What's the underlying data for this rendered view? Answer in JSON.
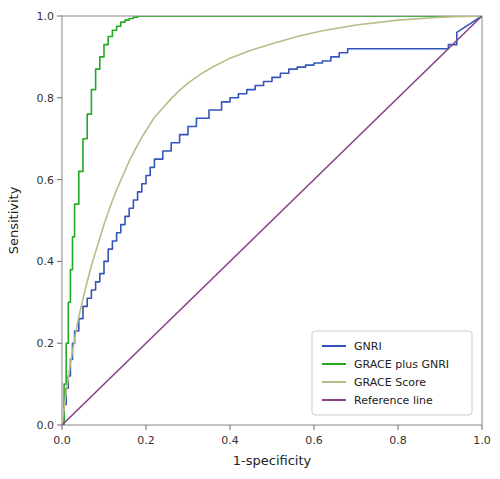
{
  "chart_data": {
    "type": "line",
    "xlabel": "1-specificity",
    "ylabel": "Sensitivity",
    "xlim": [
      0.0,
      1.0
    ],
    "ylim": [
      0.0,
      1.0
    ],
    "xticks": [
      {
        "value": 0.0,
        "label": "0.0"
      },
      0.2,
      0.4,
      0.6,
      0.8,
      {
        "value": 1.0,
        "label": "1.0"
      }
    ],
    "yticks": [
      {
        "value": 0.0,
        "label": "0.0"
      },
      0.2,
      0.4,
      0.6,
      0.8,
      {
        "value": 1.0,
        "label": "1.0"
      }
    ],
    "grid": false,
    "legend": "lower-right",
    "series": [
      {
        "name": "GNRI",
        "color": "#3355bb",
        "x": [
          0.0,
          0.005,
          0.005,
          0.01,
          0.01,
          0.015,
          0.015,
          0.02,
          0.02,
          0.025,
          0.025,
          0.03,
          0.03,
          0.04,
          0.04,
          0.05,
          0.05,
          0.06,
          0.06,
          0.07,
          0.07,
          0.08,
          0.08,
          0.09,
          0.09,
          0.1,
          0.1,
          0.11,
          0.11,
          0.12,
          0.12,
          0.13,
          0.13,
          0.14,
          0.14,
          0.15,
          0.15,
          0.16,
          0.16,
          0.17,
          0.17,
          0.18,
          0.18,
          0.19,
          0.19,
          0.2,
          0.2,
          0.21,
          0.21,
          0.22,
          0.22,
          0.24,
          0.24,
          0.26,
          0.26,
          0.28,
          0.28,
          0.3,
          0.3,
          0.32,
          0.32,
          0.35,
          0.35,
          0.38,
          0.38,
          0.4,
          0.4,
          0.42,
          0.42,
          0.44,
          0.44,
          0.46,
          0.46,
          0.48,
          0.48,
          0.5,
          0.5,
          0.52,
          0.52,
          0.54,
          0.54,
          0.56,
          0.56,
          0.58,
          0.58,
          0.6,
          0.6,
          0.62,
          0.62,
          0.64,
          0.64,
          0.66,
          0.66,
          0.68,
          0.68,
          0.92,
          0.92,
          0.94,
          0.94,
          1.0
        ],
        "values": [
          0.0,
          0.0,
          0.05,
          0.05,
          0.09,
          0.09,
          0.12,
          0.12,
          0.16,
          0.16,
          0.2,
          0.2,
          0.23,
          0.23,
          0.26,
          0.26,
          0.29,
          0.29,
          0.31,
          0.31,
          0.33,
          0.33,
          0.35,
          0.35,
          0.37,
          0.37,
          0.4,
          0.4,
          0.43,
          0.43,
          0.45,
          0.45,
          0.47,
          0.47,
          0.49,
          0.49,
          0.51,
          0.51,
          0.53,
          0.53,
          0.55,
          0.55,
          0.57,
          0.57,
          0.59,
          0.59,
          0.61,
          0.61,
          0.63,
          0.63,
          0.65,
          0.65,
          0.67,
          0.67,
          0.69,
          0.69,
          0.71,
          0.71,
          0.73,
          0.73,
          0.75,
          0.75,
          0.77,
          0.77,
          0.79,
          0.79,
          0.8,
          0.8,
          0.81,
          0.81,
          0.82,
          0.82,
          0.83,
          0.83,
          0.84,
          0.84,
          0.85,
          0.85,
          0.86,
          0.86,
          0.87,
          0.87,
          0.875,
          0.875,
          0.88,
          0.88,
          0.885,
          0.885,
          0.89,
          0.89,
          0.9,
          0.9,
          0.91,
          0.91,
          0.92,
          0.92,
          0.93,
          0.93,
          0.96,
          1.0
        ]
      },
      {
        "name": "GRACE plus GNRI",
        "color": "#22aa22",
        "x": [
          0.0,
          0.005,
          0.005,
          0.01,
          0.01,
          0.015,
          0.015,
          0.02,
          0.02,
          0.025,
          0.025,
          0.03,
          0.03,
          0.04,
          0.04,
          0.05,
          0.05,
          0.06,
          0.06,
          0.07,
          0.07,
          0.08,
          0.08,
          0.09,
          0.09,
          0.1,
          0.1,
          0.11,
          0.11,
          0.12,
          0.12,
          0.13,
          0.13,
          0.14,
          0.14,
          0.15,
          0.15,
          0.16,
          0.16,
          0.17,
          0.17,
          0.18,
          0.18,
          0.2,
          0.2,
          0.22,
          0.22,
          1.0
        ],
        "values": [
          0.0,
          0.0,
          0.1,
          0.1,
          0.2,
          0.2,
          0.3,
          0.3,
          0.38,
          0.38,
          0.46,
          0.46,
          0.54,
          0.54,
          0.62,
          0.62,
          0.7,
          0.7,
          0.76,
          0.76,
          0.82,
          0.82,
          0.87,
          0.87,
          0.9,
          0.9,
          0.93,
          0.93,
          0.95,
          0.95,
          0.965,
          0.965,
          0.975,
          0.975,
          0.985,
          0.985,
          0.99,
          0.99,
          0.994,
          0.994,
          0.997,
          0.997,
          1.0,
          1.0,
          1.0,
          1.0,
          1.0,
          1.0
        ]
      },
      {
        "name": "GRACE Score",
        "color": "#bbbb88",
        "x": [
          0.0,
          0.005,
          0.01,
          0.02,
          0.03,
          0.04,
          0.055,
          0.07,
          0.085,
          0.1,
          0.115,
          0.13,
          0.145,
          0.16,
          0.175,
          0.19,
          0.205,
          0.22,
          0.24,
          0.26,
          0.28,
          0.3,
          0.33,
          0.36,
          0.4,
          0.45,
          0.5,
          0.56,
          0.62,
          0.7,
          0.8,
          0.9,
          1.0
        ],
        "values": [
          0.0,
          0.04,
          0.08,
          0.15,
          0.21,
          0.265,
          0.33,
          0.39,
          0.44,
          0.49,
          0.535,
          0.575,
          0.61,
          0.645,
          0.675,
          0.703,
          0.728,
          0.752,
          0.775,
          0.798,
          0.818,
          0.836,
          0.858,
          0.876,
          0.897,
          0.916,
          0.932,
          0.95,
          0.964,
          0.978,
          0.99,
          0.997,
          1.0
        ]
      },
      {
        "name": "Reference line",
        "color": "#884488",
        "x": [
          0,
          1
        ],
        "values": [
          0,
          1
        ]
      }
    ]
  }
}
